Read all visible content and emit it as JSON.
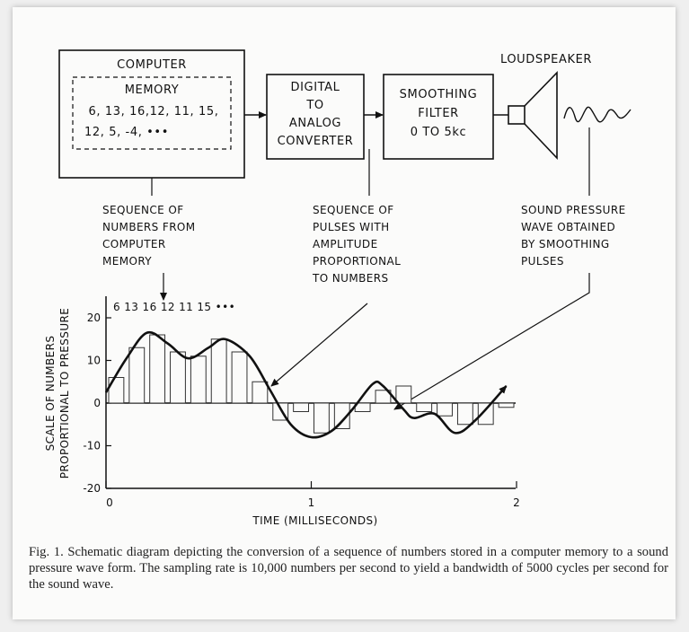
{
  "diagram": {
    "computer": {
      "title": "COMPUTER",
      "memory_title": "MEMORY",
      "memory_line1": "6, 13, 16,12, 11, 15,",
      "memory_line2": "12, 5, -4, •••"
    },
    "dac": {
      "line1": "DIGITAL",
      "line2": "TO",
      "line3": "ANALOG",
      "line4": "CONVERTER"
    },
    "filter": {
      "line1": "SMOOTHING",
      "line2": "FILTER",
      "line3": "0 TO 5kc"
    },
    "loudspeaker_label": "LOUDSPEAKER",
    "annotation_numbers": [
      "SEQUENCE OF",
      "NUMBERS FROM",
      "COMPUTER",
      "MEMORY"
    ],
    "annotation_pulses": [
      "SEQUENCE OF",
      "PULSES WITH",
      "AMPLITUDE",
      "PROPORTIONAL",
      "TO NUMBERS"
    ],
    "annotation_sound": [
      "SOUND PRESSURE",
      "WAVE OBTAINED",
      "BY SMOOTHING",
      "PULSES"
    ]
  },
  "chart_data": {
    "type": "bar",
    "xlabel": "TIME (MILLISECONDS)",
    "ylabel_line1": "SCALE OF NUMBERS",
    "ylabel_line2": "PROPORTIONAL TO PRESSURE",
    "xlim": [
      0,
      2
    ],
    "ylim": [
      -20,
      20
    ],
    "x_ticks": [
      "0",
      "1",
      "2"
    ],
    "y_ticks": [
      "20",
      "10",
      "0",
      "-10",
      "-20"
    ],
    "sequence_label": "6 13 16 12 11 15 •••",
    "pulses": [
      6,
      13,
      16,
      12,
      11,
      15,
      12,
      5,
      -4,
      -2,
      -7,
      -6,
      -2,
      3,
      4,
      -2,
      -3,
      -5,
      -5,
      -1
    ],
    "smoothed_curve": [
      [
        0.0,
        2.5
      ],
      [
        0.1,
        10.5
      ],
      [
        0.2,
        16.5
      ],
      [
        0.3,
        14
      ],
      [
        0.4,
        10.5
      ],
      [
        0.5,
        13
      ],
      [
        0.58,
        15
      ],
      [
        0.7,
        11
      ],
      [
        0.8,
        3
      ],
      [
        0.9,
        -5
      ],
      [
        1.0,
        -8
      ],
      [
        1.1,
        -6.5
      ],
      [
        1.2,
        -1.5
      ],
      [
        1.3,
        4.5
      ],
      [
        1.35,
        4
      ],
      [
        1.45,
        -1.5
      ],
      [
        1.5,
        -3.5
      ],
      [
        1.6,
        -2.5
      ],
      [
        1.7,
        -7
      ],
      [
        1.8,
        -4
      ],
      [
        1.95,
        4
      ]
    ]
  },
  "caption": "Fig. 1. Schematic diagram depicting the conversion of a sequence of numbers stored in a computer memory to a sound pressure wave form. The sampling rate is 10,000 numbers per second to yield a bandwidth of 5000 cycles per second for the sound wave."
}
